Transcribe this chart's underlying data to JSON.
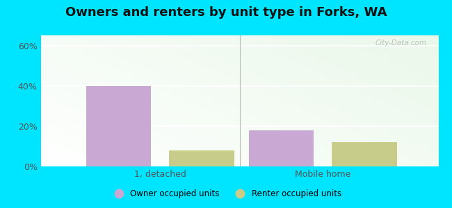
{
  "title": "Owners and renters by unit type in Forks, WA",
  "categories": [
    "1, detached",
    "Mobile home"
  ],
  "owner_values": [
    40,
    18
  ],
  "renter_values": [
    8,
    12
  ],
  "owner_color": "#c9a8d4",
  "renter_color": "#c8cc8a",
  "owner_label": "Owner occupied units",
  "renter_label": "Renter occupied units",
  "yticks": [
    0,
    20,
    40,
    60
  ],
  "ylim": [
    0,
    65
  ],
  "bar_width": 0.18,
  "background_color": "#00e5ff",
  "watermark": "City-Data.com",
  "title_fontsize": 13,
  "group_centers": [
    0.28,
    0.73
  ]
}
